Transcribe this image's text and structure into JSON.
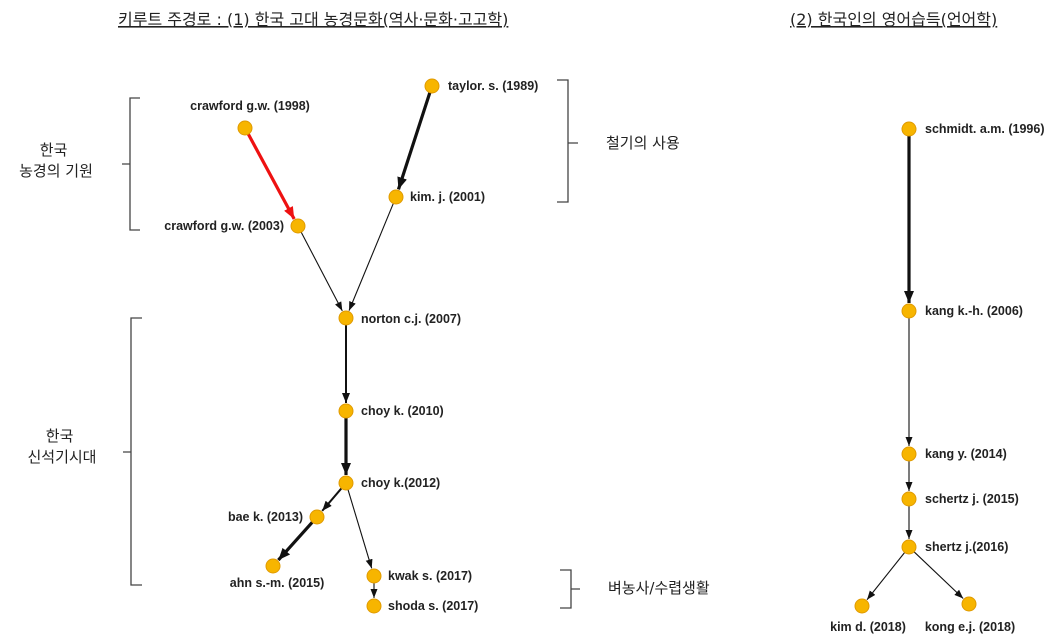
{
  "titles": {
    "left": "키루트 주경로 : (1) 한국 고대 농경문화(역사·문화·고고학)",
    "right": "(2) 한국인의 영어습득(언어학)"
  },
  "groups": [
    {
      "id": "g1",
      "lines": [
        "한국",
        "농경의 기원"
      ]
    },
    {
      "id": "g2",
      "lines": [
        "철기의 사용"
      ]
    },
    {
      "id": "g3",
      "lines": [
        "한국",
        "신석기시대"
      ]
    },
    {
      "id": "g4",
      "lines": [
        "벼농사/수렵생활"
      ]
    }
  ],
  "nodes": [
    {
      "id": "n1",
      "label": "crawford g.w. (1998)"
    },
    {
      "id": "n2",
      "label": "crawford g.w. (2003)"
    },
    {
      "id": "n3",
      "label": "taylor. s. (1989)"
    },
    {
      "id": "n4",
      "label": "kim. j. (2001)"
    },
    {
      "id": "n5",
      "label": "norton c.j. (2007)"
    },
    {
      "id": "n6",
      "label": "choy k. (2010)"
    },
    {
      "id": "n7",
      "label": "choy k.(2012)"
    },
    {
      "id": "n8",
      "label": "bae k. (2013)"
    },
    {
      "id": "n9",
      "label": "ahn s.-m. (2015)"
    },
    {
      "id": "n10",
      "label": "kwak s. (2017)"
    },
    {
      "id": "n11",
      "label": "shoda s. (2017)"
    },
    {
      "id": "m1",
      "label": "schmidt. a.m. (1996)"
    },
    {
      "id": "m2",
      "label": "kang k.-h. (2006)"
    },
    {
      "id": "m3",
      "label": "kang y. (2014)"
    },
    {
      "id": "m4",
      "label": "schertz j. (2015)"
    },
    {
      "id": "m5",
      "label": "shertz j.(2016)"
    },
    {
      "id": "m6",
      "label": "kim d. (2018)"
    },
    {
      "id": "m7",
      "label": "kong e.j. (2018)"
    }
  ],
  "edges": [
    {
      "from": "n1",
      "to": "n2",
      "style": "red"
    },
    {
      "from": "n3",
      "to": "n4",
      "style": "bold"
    },
    {
      "from": "n2",
      "to": "n5",
      "style": "thin"
    },
    {
      "from": "n4",
      "to": "n5",
      "style": "thin"
    },
    {
      "from": "n5",
      "to": "n6",
      "style": "medium"
    },
    {
      "from": "n6",
      "to": "n7",
      "style": "bold"
    },
    {
      "from": "n7",
      "to": "n8",
      "style": "medium"
    },
    {
      "from": "n7",
      "to": "n10",
      "style": "thin"
    },
    {
      "from": "n8",
      "to": "n9",
      "style": "bold"
    },
    {
      "from": "n10",
      "to": "n11",
      "style": "thin"
    },
    {
      "from": "m1",
      "to": "m2",
      "style": "bold"
    },
    {
      "from": "m2",
      "to": "m3",
      "style": "thin"
    },
    {
      "from": "m3",
      "to": "m4",
      "style": "thin"
    },
    {
      "from": "m4",
      "to": "m5",
      "style": "thin"
    },
    {
      "from": "m5",
      "to": "m6",
      "style": "thin"
    },
    {
      "from": "m5",
      "to": "m7",
      "style": "thin"
    }
  ],
  "colors": {
    "node": "#f7b500",
    "node_stroke": "#e09a00",
    "edge": "#111111",
    "highlight_edge": "#ee1111"
  }
}
